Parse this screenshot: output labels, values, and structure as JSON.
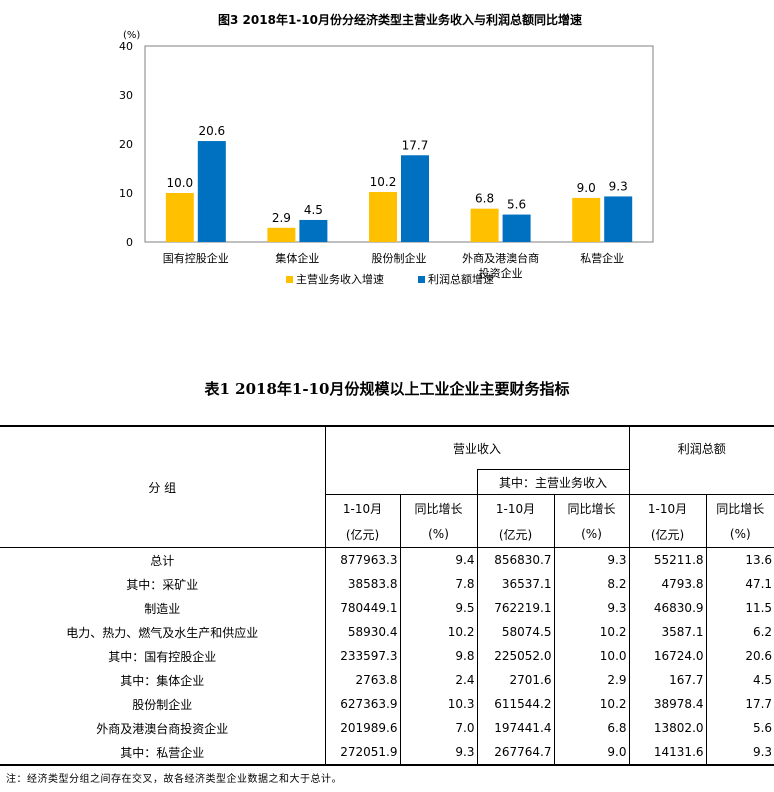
{
  "chart_data": {
    "type": "bar",
    "title": "图3 2018年1-10月份分经济类型主营业务收入与利润总额同比增速",
    "ylabel": "(%)",
    "ylim": [
      0,
      40
    ],
    "yticks": [
      0,
      10,
      20,
      30,
      40
    ],
    "categories": [
      "国有控股企业",
      "集体企业",
      "股份制企业",
      "外商及港澳台商投资企业",
      "私营企业"
    ],
    "category_lines": [
      [
        "国有控股企业"
      ],
      [
        "集体企业"
      ],
      [
        "股份制企业"
      ],
      [
        "外商及港澳台商",
        "投资企业"
      ],
      [
        "私营企业"
      ]
    ],
    "series": [
      {
        "name": "主营业务收入增速",
        "color": "#ffc000",
        "values": [
          10.0,
          2.9,
          10.2,
          6.8,
          9.0
        ],
        "labels": [
          "10.0",
          "2.9",
          "10.2",
          "6.8",
          "9.0"
        ]
      },
      {
        "name": "利润总额增速",
        "color": "#0070c0",
        "values": [
          20.6,
          4.5,
          17.7,
          5.6,
          9.3
        ],
        "labels": [
          "20.6",
          "4.5",
          "17.7",
          "5.6",
          "9.3"
        ]
      }
    ],
    "grid": false,
    "legend": "bottom"
  },
  "table": {
    "title": "表1 2018年1-10月份规模以上工业企业主要财务指标",
    "group_header": "分  组",
    "revenue_header": "营业收入",
    "main_revenue_header": "其中：主营业务收入",
    "profit_header": "利润总额",
    "period_label": "1-10月",
    "unit_label": "(亿元)",
    "growth_label": "同比增长",
    "pct_label": "(%)",
    "rows": [
      {
        "name": "总计",
        "rev": "877963.3",
        "rev_g": "9.4",
        "main": "856830.7",
        "main_g": "9.3",
        "profit": "55211.8",
        "profit_g": "13.6"
      },
      {
        "name": "其中：采矿业",
        "rev": "38583.8",
        "rev_g": "7.8",
        "main": "36537.1",
        "main_g": "8.2",
        "profit": "4793.8",
        "profit_g": "47.1"
      },
      {
        "name": "制造业",
        "rev": "780449.1",
        "rev_g": "9.5",
        "main": "762219.1",
        "main_g": "9.3",
        "profit": "46830.9",
        "profit_g": "11.5"
      },
      {
        "name": "电力、热力、燃气及水生产和供应业",
        "rev": "58930.4",
        "rev_g": "10.2",
        "main": "58074.5",
        "main_g": "10.2",
        "profit": "3587.1",
        "profit_g": "6.2"
      },
      {
        "name": "其中：国有控股企业",
        "rev": "233597.3",
        "rev_g": "9.8",
        "main": "225052.0",
        "main_g": "10.0",
        "profit": "16724.0",
        "profit_g": "20.6"
      },
      {
        "name": "其中：集体企业",
        "rev": "2763.8",
        "rev_g": "2.4",
        "main": "2701.6",
        "main_g": "2.9",
        "profit": "167.7",
        "profit_g": "4.5"
      },
      {
        "name": "股份制企业",
        "rev": "627363.9",
        "rev_g": "10.3",
        "main": "611544.2",
        "main_g": "10.2",
        "profit": "38978.4",
        "profit_g": "17.7"
      },
      {
        "name": "外商及港澳台商投资企业",
        "rev": "201989.6",
        "rev_g": "7.0",
        "main": "197441.4",
        "main_g": "6.8",
        "profit": "13802.0",
        "profit_g": "5.6"
      },
      {
        "name": "其中：私营企业",
        "rev": "272051.9",
        "rev_g": "9.3",
        "main": "267764.7",
        "main_g": "9.0",
        "profit": "14131.6",
        "profit_g": "9.3"
      }
    ],
    "footnote": "注：经济类型分组之间存在交叉，故各经济类型企业数据之和大于总计。"
  }
}
